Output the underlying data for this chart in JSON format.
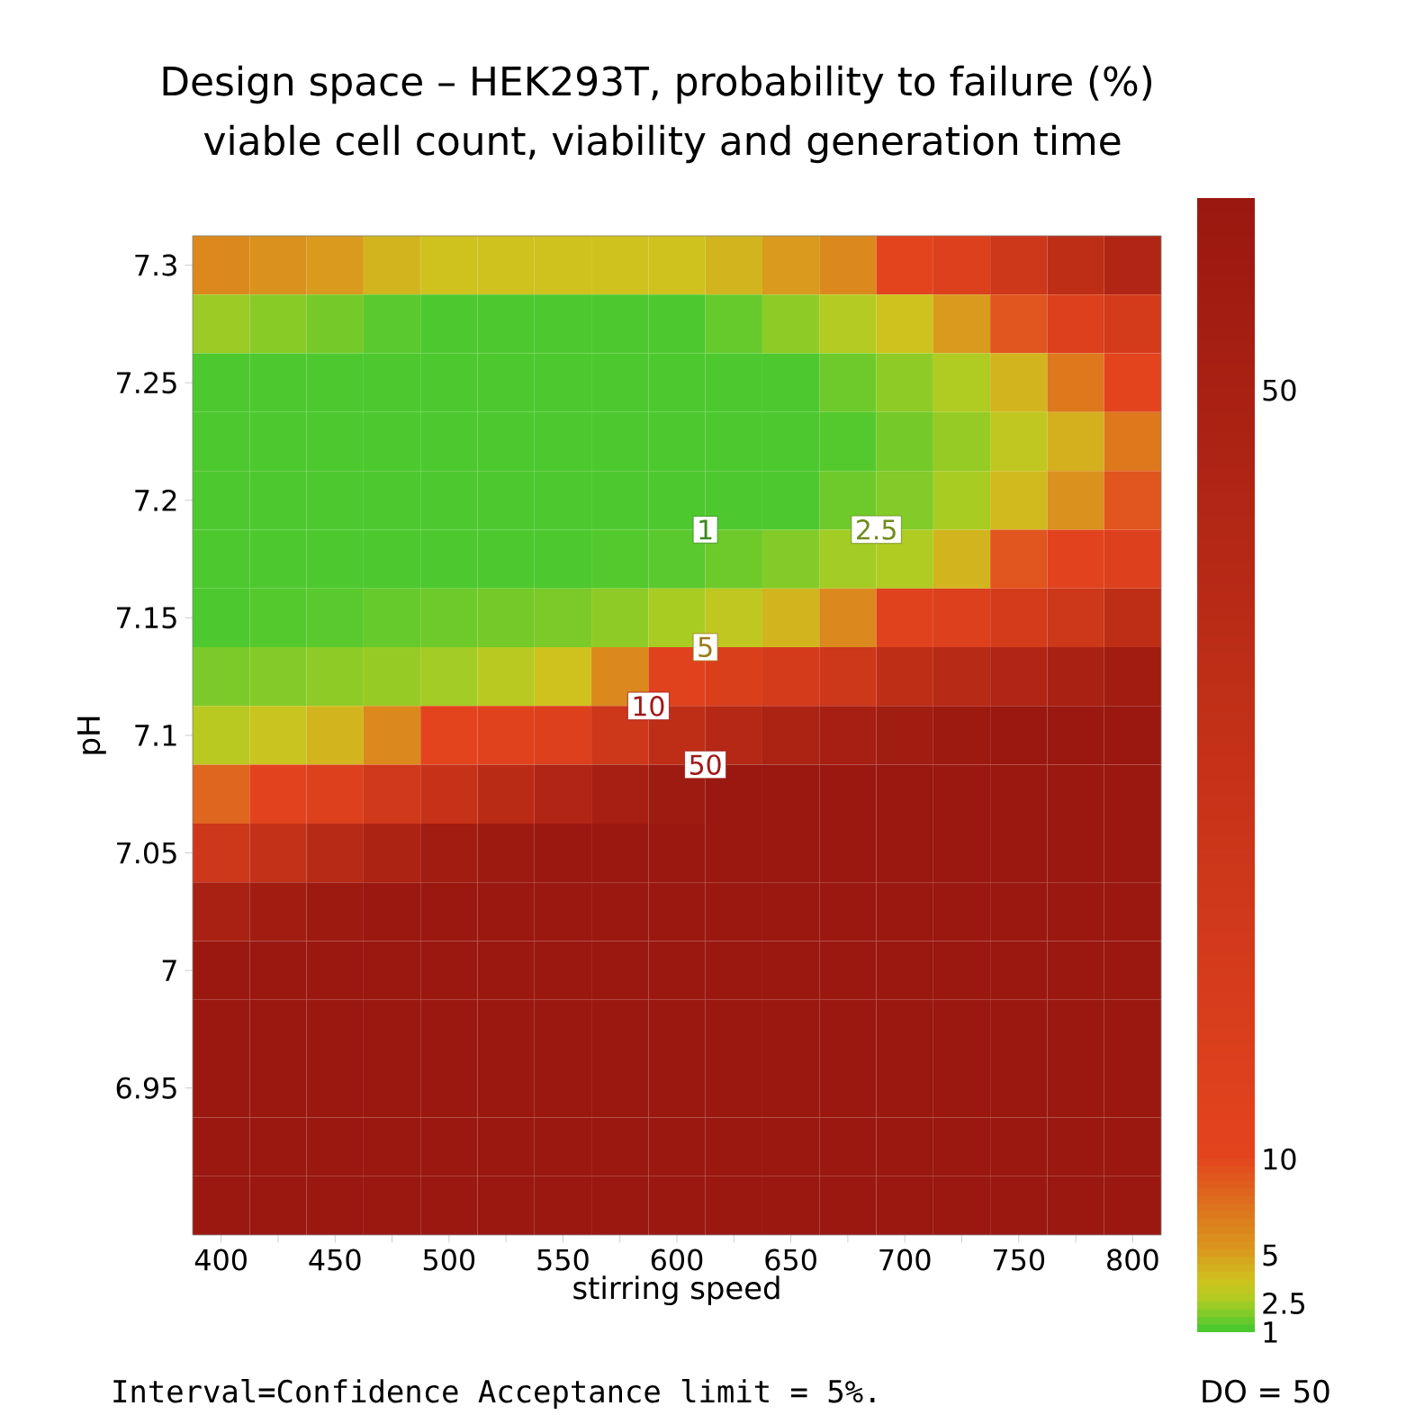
{
  "chart_data": {
    "type": "heatmap",
    "title": "Design space – HEK293T, probability to failure (%)",
    "subtitle": "viable cell count, viability and generation time",
    "xlabel": "stirring speed",
    "ylabel": "pH",
    "categories": [
      "400",
      null,
      "450",
      null,
      "500",
      null,
      "550",
      null,
      "600",
      null,
      "650",
      null,
      "700",
      null,
      "750",
      null,
      "800"
    ],
    "y_categories": [
      "7.3",
      null,
      "7.25",
      null,
      "7.2",
      null,
      "7.15",
      null,
      "7.1",
      null,
      "7.05",
      null,
      "7",
      null,
      "6.95",
      null,
      null
    ],
    "cells": [
      [
        6,
        5.5,
        5,
        4,
        3.5,
        3.5,
        3.5,
        3.5,
        3.5,
        4,
        5,
        6,
        10,
        15,
        25,
        35,
        45
      ],
      [
        2.2,
        1.9,
        1.6,
        1.2,
        1,
        1,
        1,
        1,
        1,
        1.4,
        2,
        2.6,
        3.5,
        5,
        9,
        15,
        20
      ],
      [
        1,
        1,
        1,
        1,
        1,
        1,
        1,
        1,
        1,
        1,
        1,
        1.5,
        2,
        2.5,
        4,
        7,
        10
      ],
      [
        1,
        1,
        1,
        1,
        1,
        1,
        1,
        1,
        1,
        1,
        1,
        1.1,
        1.6,
        2.1,
        3,
        4.2,
        7
      ],
      [
        1,
        1,
        1,
        1,
        1,
        1,
        1,
        1,
        1,
        1,
        1,
        1.5,
        1.8,
        2.4,
        3.8,
        5.5,
        9
      ],
      [
        1,
        1,
        1,
        1,
        1,
        1,
        1,
        1.1,
        1.2,
        1.5,
        1.8,
        2.3,
        2.5,
        4,
        9,
        11,
        14
      ],
      [
        1,
        1.1,
        1.2,
        1.4,
        1.5,
        1.6,
        1.7,
        2,
        2.4,
        3,
        4,
        6,
        12,
        15,
        20,
        25,
        35
      ],
      [
        1.7,
        1.8,
        2,
        2.1,
        2.3,
        2.8,
        3.5,
        6,
        12,
        16,
        20,
        25,
        35,
        40,
        45,
        50,
        55
      ],
      [
        2.8,
        3.3,
        4,
        6,
        10,
        12,
        15,
        25,
        35,
        42,
        48,
        52,
        55,
        58,
        60,
        60,
        60
      ],
      [
        8,
        11,
        15,
        22,
        30,
        38,
        45,
        52,
        57,
        60,
        60,
        60,
        60,
        60,
        60,
        60,
        60
      ],
      [
        25,
        32,
        40,
        48,
        55,
        58,
        60,
        60,
        60,
        60,
        60,
        60,
        60,
        60,
        60,
        60,
        60
      ],
      [
        50,
        55,
        58,
        60,
        60,
        60,
        60,
        60,
        60,
        60,
        60,
        60,
        60,
        60,
        60,
        60,
        60
      ],
      [
        60,
        60,
        60,
        60,
        60,
        60,
        60,
        60,
        60,
        60,
        60,
        60,
        60,
        60,
        60,
        60,
        60
      ],
      [
        60,
        60,
        60,
        60,
        60,
        60,
        60,
        60,
        60,
        60,
        60,
        60,
        60,
        60,
        60,
        60,
        60
      ],
      [
        60,
        60,
        60,
        60,
        60,
        60,
        60,
        60,
        60,
        60,
        60,
        60,
        60,
        60,
        60,
        60,
        60
      ],
      [
        60,
        60,
        60,
        60,
        60,
        60,
        60,
        60,
        60,
        60,
        60,
        60,
        60,
        60,
        60,
        60,
        60
      ],
      [
        60,
        60,
        60,
        60,
        60,
        60,
        60,
        60,
        60,
        60,
        60,
        60,
        60,
        60,
        60,
        60,
        60
      ]
    ],
    "clim": [
      1,
      60
    ],
    "cticks": [
      1,
      2.5,
      5,
      10,
      50
    ],
    "annotations": [
      "1",
      "2.5",
      "5",
      "10",
      "50",
      "Interval=Confidence Acceptance limit = 5%.",
      "DO =  50"
    ]
  }
}
